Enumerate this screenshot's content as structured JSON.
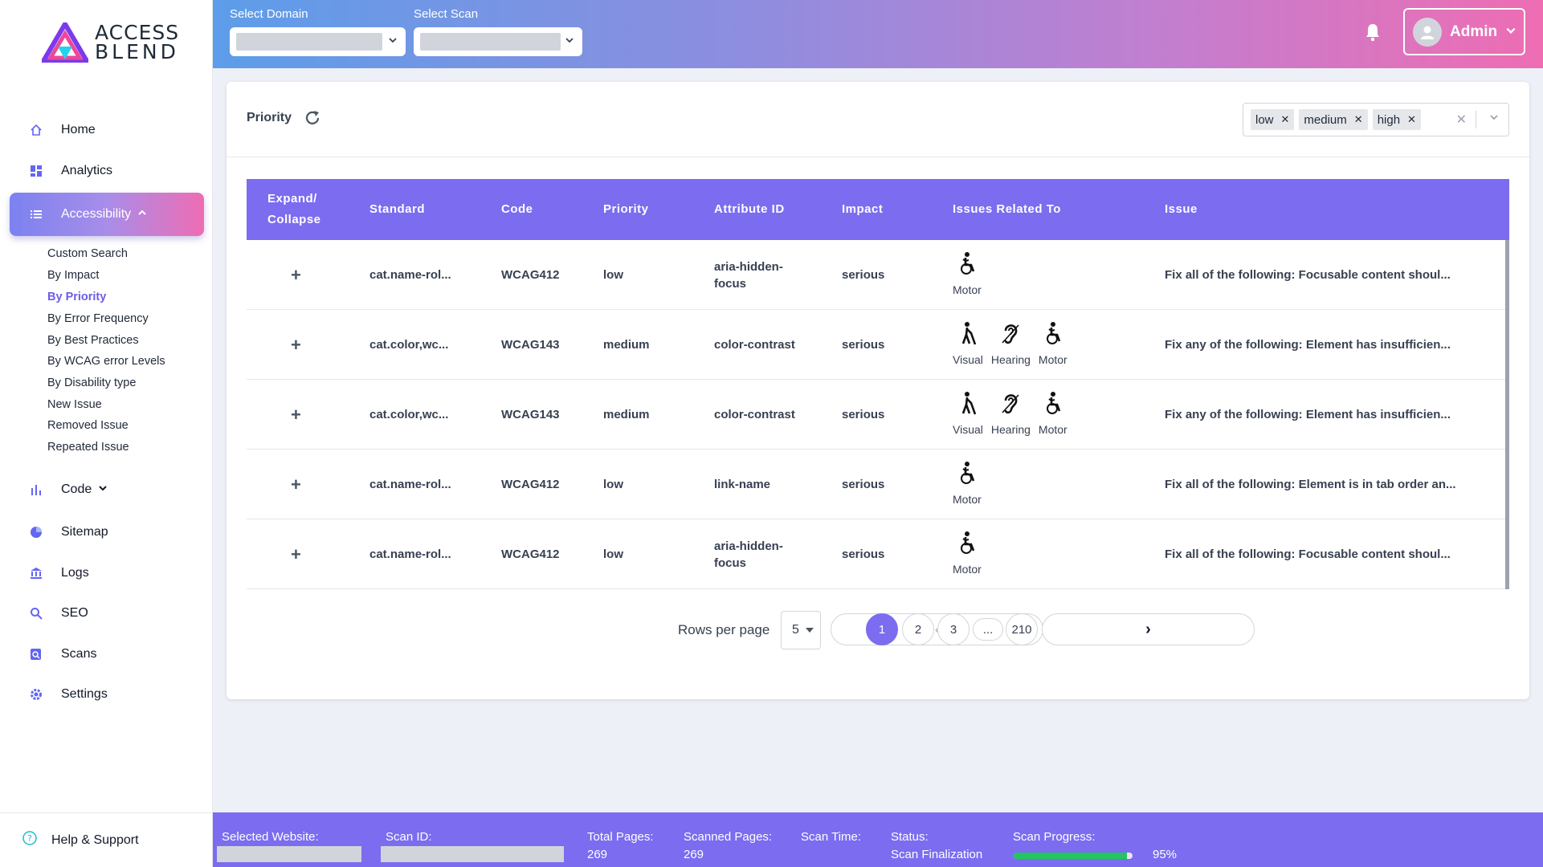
{
  "brand": {
    "line1": "ACCESS",
    "line2": "BLEND"
  },
  "sidebar": {
    "items": [
      {
        "label": "Home",
        "icon": "home-icon"
      },
      {
        "label": "Analytics",
        "icon": "dashboard-icon"
      },
      {
        "label": "Accessibility",
        "icon": "list-icon"
      },
      {
        "label": "Code",
        "icon": "bar-chart-icon"
      },
      {
        "label": "Sitemap",
        "icon": "pie-chart-icon"
      },
      {
        "label": "Logs",
        "icon": "bank-icon"
      },
      {
        "label": "SEO",
        "icon": "search-icon"
      },
      {
        "label": "Scans",
        "icon": "scan-icon"
      },
      {
        "label": "Settings",
        "icon": "gear-icon"
      }
    ],
    "subitems": [
      "Custom Search",
      "By Impact",
      "By Priority",
      "By Error Frequency",
      "By Best Practices",
      "By WCAG error Levels",
      "By Disability type",
      "New Issue",
      "Removed Issue",
      "Repeated Issue"
    ],
    "help": "Help & Support"
  },
  "topbar": {
    "domain_label": "Select Domain",
    "scan_label": "Select Scan",
    "user": "Admin"
  },
  "page": {
    "title": "Priority",
    "filter_chips": [
      "low",
      "medium",
      "high"
    ]
  },
  "table": {
    "headers": [
      "Expand/ Collapse",
      "Standard",
      "Code",
      "Priority",
      "Attribute ID",
      "Impact",
      "Issues Related To",
      "Issue"
    ],
    "rows": [
      {
        "standard": "cat.name-rol...",
        "code": "WCAG412",
        "priority": "low",
        "attribute": "aria-hidden-focus",
        "impact": "serious",
        "related": [
          "Motor"
        ],
        "issue": "Fix all of the following: Focusable content shoul..."
      },
      {
        "standard": "cat.color,wc...",
        "code": "WCAG143",
        "priority": "medium",
        "attribute": "color-contrast",
        "impact": "serious",
        "related": [
          "Visual",
          "Hearing",
          "Motor"
        ],
        "issue": "Fix any of the following: Element has insufficien..."
      },
      {
        "standard": "cat.color,wc...",
        "code": "WCAG143",
        "priority": "medium",
        "attribute": "color-contrast",
        "impact": "serious",
        "related": [
          "Visual",
          "Hearing",
          "Motor"
        ],
        "issue": "Fix any of the following: Element has insufficien..."
      },
      {
        "standard": "cat.name-rol...",
        "code": "WCAG412",
        "priority": "low",
        "attribute": "link-name",
        "impact": "serious",
        "related": [
          "Motor"
        ],
        "issue": "Fix all of the following: Element is in tab order an..."
      },
      {
        "standard": "cat.name-rol...",
        "code": "WCAG412",
        "priority": "low",
        "attribute": "aria-hidden-focus",
        "impact": "serious",
        "related": [
          "Motor"
        ],
        "issue": "Fix all of the following: Focusable content shoul..."
      }
    ]
  },
  "pagination": {
    "rows_label": "Rows per page",
    "rows_value": "5",
    "pages": [
      "1",
      "2",
      "3",
      "...",
      "210"
    ]
  },
  "footer": {
    "selected_website_label": "Selected Website:",
    "scan_id_label": "Scan ID:",
    "total_pages_label": "Total Pages:",
    "total_pages": "269",
    "scanned_pages_label": "Scanned Pages:",
    "scanned_pages": "269",
    "scan_time_label": "Scan Time:",
    "status_label": "Status:",
    "status": "Scan Finalization",
    "progress_label": "Scan Progress:",
    "progress_text": "95%",
    "progress_fraction": 0.95
  },
  "colors": {
    "accent": "#7b6cf0",
    "progress": "#22c55e"
  }
}
